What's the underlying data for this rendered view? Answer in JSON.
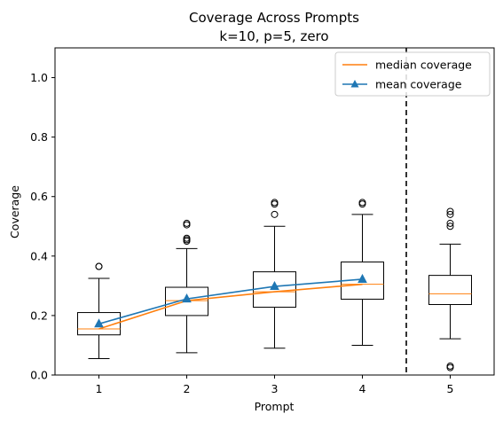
{
  "chart_data": {
    "type": "box",
    "title": "Coverage Across Prompts",
    "subtitle": "k=10, p=5, zero",
    "xlabel": "Prompt",
    "ylabel": "Coverage",
    "ylim": [
      0.0,
      1.1
    ],
    "xlim": [
      0.5,
      5.5
    ],
    "yticks": [
      "0.0",
      "0.2",
      "0.4",
      "0.6",
      "0.8",
      "1.0"
    ],
    "categories": [
      "1",
      "2",
      "3",
      "4",
      "5"
    ],
    "boxes": [
      {
        "x": 1,
        "whisker_low": 0.055,
        "q1": 0.135,
        "median": 0.155,
        "q3": 0.21,
        "whisker_high": 0.325,
        "outliers": [
          0.365,
          0.365
        ]
      },
      {
        "x": 2,
        "whisker_low": 0.075,
        "q1": 0.2,
        "median": 0.25,
        "q3": 0.295,
        "whisker_high": 0.425,
        "outliers": [
          0.45,
          0.455,
          0.46,
          0.505,
          0.51
        ]
      },
      {
        "x": 3,
        "whisker_low": 0.09,
        "q1": 0.228,
        "median": 0.28,
        "q3": 0.347,
        "whisker_high": 0.5,
        "outliers": [
          0.54,
          0.575,
          0.58
        ]
      },
      {
        "x": 4,
        "whisker_low": 0.1,
        "q1": 0.255,
        "median": 0.305,
        "q3": 0.38,
        "whisker_high": 0.54,
        "outliers": [
          0.575,
          0.58
        ]
      },
      {
        "x": 5,
        "whisker_low": 0.122,
        "q1": 0.237,
        "median": 0.273,
        "q3": 0.335,
        "whisker_high": 0.44,
        "outliers": [
          0.025,
          0.03,
          0.5,
          0.51,
          0.54,
          0.55
        ]
      }
    ],
    "series": [
      {
        "name": "median coverage",
        "color": "#ff7f0e",
        "marker": "none",
        "x": [
          1,
          2,
          3,
          4
        ],
        "values": [
          0.155,
          0.25,
          0.28,
          0.305
        ]
      },
      {
        "name": "mean coverage",
        "color": "#1f77b4",
        "marker": "triangle",
        "x": [
          1,
          2,
          3,
          4
        ],
        "values": [
          0.172,
          0.256,
          0.298,
          0.322
        ]
      }
    ],
    "vline": {
      "x": 4.5,
      "style": "dashed",
      "color": "#000000"
    },
    "legend": {
      "placement": "top-right"
    },
    "grid": false
  }
}
